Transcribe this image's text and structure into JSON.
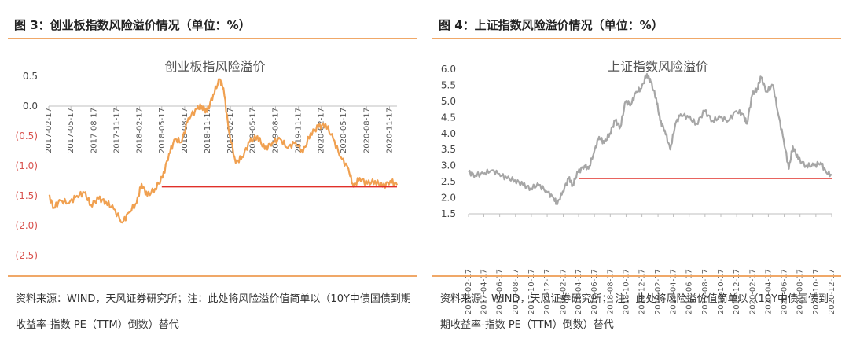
{
  "charts": [
    {
      "caption": "图 3：创业板指数风险溢价情况（单位：%）",
      "source": "资料来源：WIND，天风证券研究所；注：此处将风险溢价值简单以（10Y中债国债到期收益率-指数 PE（TTM）倒数）替代"
    },
    {
      "caption": "图 4：上证指数风险溢价情况（单位：%）",
      "source": "资料来源：WIND，天风证券研究所； 注：此处将风险溢价值简单以（10Y中债国债到期收益率-指数 PE（TTM）倒数）替代"
    }
  ],
  "colors": {
    "line_left": "#f0a050",
    "line_right": "#a6a6a6",
    "reference": "#e0302a",
    "negative_tick": "#d9534f",
    "axis": "#bfbfbf"
  },
  "chart_data": [
    {
      "type": "line",
      "title": "创业板指风险溢价",
      "ylim": [
        -2.5,
        0.5
      ],
      "yticks": [
        0.5,
        0.0,
        -0.5,
        -1.0,
        -1.5,
        -2.0,
        -2.5
      ],
      "ytick_labels": [
        "0.5",
        "0.0",
        "(0.5)",
        "(1.0)",
        "(1.5)",
        "(2.0)",
        "(2.5)"
      ],
      "xticks": [
        "2017-02-17",
        "2017-05-17",
        "2017-08-17",
        "2017-11-17",
        "2018-02-17",
        "2018-05-17",
        "2018-08-17",
        "2018-11-17",
        "2019-02-17",
        "2019-05-17",
        "2019-08-17",
        "2019-11-17",
        "2020-02-17",
        "2020-05-17",
        "2020-08-17",
        "2020-11-17"
      ],
      "x_range": [
        "2017-02-17",
        "2020-12-17"
      ],
      "series": [
        {
          "points": [
            [
              "2017-02-17",
              -1.5
            ],
            [
              "2017-03-10",
              -1.7
            ],
            [
              "2017-04-05",
              -1.58
            ],
            [
              "2017-05-10",
              -1.62
            ],
            [
              "2017-06-10",
              -1.5
            ],
            [
              "2017-07-10",
              -1.45
            ],
            [
              "2017-08-05",
              -1.65
            ],
            [
              "2017-09-05",
              -1.55
            ],
            [
              "2017-10-05",
              -1.6
            ],
            [
              "2017-11-05",
              -1.72
            ],
            [
              "2017-12-10",
              -1.95
            ],
            [
              "2018-01-05",
              -1.78
            ],
            [
              "2018-02-05",
              -1.62
            ],
            [
              "2018-02-25",
              -1.3
            ],
            [
              "2018-03-20",
              -1.5
            ],
            [
              "2018-04-20",
              -1.38
            ],
            [
              "2018-05-20",
              -1.2
            ],
            [
              "2018-06-15",
              -0.8
            ],
            [
              "2018-07-10",
              -0.55
            ],
            [
              "2018-08-05",
              -0.6
            ],
            [
              "2018-09-01",
              -0.2
            ],
            [
              "2018-10-05",
              -0.05
            ],
            [
              "2018-10-25",
              0.0
            ],
            [
              "2018-11-15",
              -0.1
            ],
            [
              "2018-12-10",
              0.2
            ],
            [
              "2019-01-05",
              0.45
            ],
            [
              "2019-01-20",
              0.3
            ],
            [
              "2019-02-10",
              -0.4
            ],
            [
              "2019-03-10",
              -0.95
            ],
            [
              "2019-04-05",
              -0.85
            ],
            [
              "2019-05-05",
              -0.6
            ],
            [
              "2019-06-05",
              -0.5
            ],
            [
              "2019-07-05",
              -0.72
            ],
            [
              "2019-08-05",
              -0.6
            ],
            [
              "2019-09-05",
              -0.55
            ],
            [
              "2019-10-05",
              -0.7
            ],
            [
              "2019-11-05",
              -0.6
            ],
            [
              "2019-12-05",
              -0.78
            ],
            [
              "2020-01-05",
              -0.45
            ],
            [
              "2020-02-05",
              -0.35
            ],
            [
              "2020-03-05",
              -0.3
            ],
            [
              "2020-04-05",
              -0.55
            ],
            [
              "2020-05-05",
              -0.85
            ],
            [
              "2020-06-05",
              -1.05
            ],
            [
              "2020-06-25",
              -1.35
            ],
            [
              "2020-07-20",
              -1.2
            ],
            [
              "2020-08-20",
              -1.3
            ],
            [
              "2020-09-20",
              -1.25
            ],
            [
              "2020-10-20",
              -1.35
            ],
            [
              "2020-11-20",
              -1.25
            ],
            [
              "2020-12-17",
              -1.32
            ]
          ]
        },
        {
          "points": [
            [
              "2018-05-17",
              -1.35
            ],
            [
              "2020-12-17",
              -1.35
            ]
          ]
        }
      ]
    },
    {
      "type": "line",
      "title": "上证指数风险溢价",
      "ylim": [
        1.5,
        6.0
      ],
      "yticks": [
        1.5,
        2.0,
        2.5,
        3.0,
        3.5,
        4.0,
        4.5,
        5.0,
        5.5,
        6.0
      ],
      "ytick_labels": [
        "1.5",
        "2.0",
        "2.5",
        "3.0",
        "3.5",
        "4.0",
        "4.5",
        "5.0",
        "5.5",
        "6.0"
      ],
      "xticks": [
        "2017-02-17",
        "2017-04-17",
        "2017-06-17",
        "2017-08-17",
        "2017-10-17",
        "2017-12-17",
        "2018-02-17",
        "2018-04-17",
        "2018-06-17",
        "2018-08-17",
        "2018-10-17",
        "2018-12-17",
        "2019-02-17",
        "2019-04-17",
        "2019-06-17",
        "2019-08-17",
        "2019-10-17",
        "2019-12-17",
        "2020-02-17",
        "2020-04-17",
        "2020-06-17",
        "2020-08-17",
        "2020-10-17",
        "2020-12-17"
      ],
      "x_range": [
        "2017-02-17",
        "2020-12-17"
      ],
      "series": [
        {
          "points": [
            [
              "2017-02-17",
              2.8
            ],
            [
              "2017-03-15",
              2.7
            ],
            [
              "2017-04-15",
              2.75
            ],
            [
              "2017-05-15",
              2.85
            ],
            [
              "2017-06-15",
              2.75
            ],
            [
              "2017-07-15",
              2.6
            ],
            [
              "2017-08-15",
              2.55
            ],
            [
              "2017-09-15",
              2.4
            ],
            [
              "2017-10-15",
              2.3
            ],
            [
              "2017-11-15",
              2.4
            ],
            [
              "2017-12-15",
              2.2
            ],
            [
              "2018-01-10",
              2.0
            ],
            [
              "2018-01-25",
              1.8
            ],
            [
              "2018-02-15",
              2.2
            ],
            [
              "2018-03-10",
              2.6
            ],
            [
              "2018-03-25",
              2.4
            ],
            [
              "2018-04-15",
              2.8
            ],
            [
              "2018-05-10",
              3.0
            ],
            [
              "2018-05-25",
              2.9
            ],
            [
              "2018-06-15",
              3.4
            ],
            [
              "2018-07-05",
              3.9
            ],
            [
              "2018-07-25",
              3.7
            ],
            [
              "2018-08-15",
              4.0
            ],
            [
              "2018-09-05",
              4.4
            ],
            [
              "2018-09-25",
              4.2
            ],
            [
              "2018-10-15",
              5.0
            ],
            [
              "2018-11-05",
              4.9
            ],
            [
              "2018-11-25",
              5.3
            ],
            [
              "2018-12-15",
              5.4
            ],
            [
              "2019-01-05",
              5.85
            ],
            [
              "2019-01-20",
              5.6
            ],
            [
              "2019-02-10",
              5.1
            ],
            [
              "2019-02-25",
              4.4
            ],
            [
              "2019-03-15",
              4.1
            ],
            [
              "2019-04-05",
              3.5
            ],
            [
              "2019-04-25",
              4.3
            ],
            [
              "2019-05-15",
              4.6
            ],
            [
              "2019-06-15",
              4.5
            ],
            [
              "2019-07-15",
              4.3
            ],
            [
              "2019-08-15",
              4.7
            ],
            [
              "2019-09-15",
              4.4
            ],
            [
              "2019-10-15",
              4.5
            ],
            [
              "2019-11-15",
              4.4
            ],
            [
              "2019-12-15",
              4.7
            ],
            [
              "2020-01-10",
              4.6
            ],
            [
              "2020-01-25",
              4.3
            ],
            [
              "2020-02-15",
              5.2
            ],
            [
              "2020-03-05",
              5.4
            ],
            [
              "2020-03-20",
              5.75
            ],
            [
              "2020-04-10",
              5.3
            ],
            [
              "2020-05-05",
              5.5
            ],
            [
              "2020-05-25",
              4.6
            ],
            [
              "2020-06-15",
              3.8
            ],
            [
              "2020-07-05",
              2.9
            ],
            [
              "2020-07-20",
              3.6
            ],
            [
              "2020-08-10",
              3.2
            ],
            [
              "2020-09-10",
              3.0
            ],
            [
              "2020-10-10",
              3.0
            ],
            [
              "2020-11-05",
              3.1
            ],
            [
              "2020-11-25",
              2.8
            ],
            [
              "2020-12-17",
              2.7
            ]
          ]
        },
        {
          "points": [
            [
              "2018-04-17",
              2.6
            ],
            [
              "2020-12-17",
              2.6
            ]
          ]
        }
      ]
    }
  ]
}
